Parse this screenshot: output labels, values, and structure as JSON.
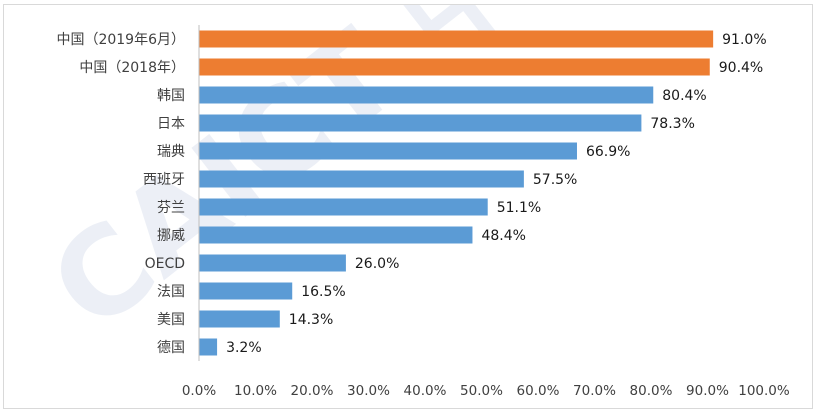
{
  "chart_data": {
    "type": "bar",
    "orientation": "horizontal",
    "categories": [
      "中国（2019年6月）",
      "中国（2018年）",
      "韩国",
      "日本",
      "瑞典",
      "西班牙",
      "芬兰",
      "挪威",
      "OECD",
      "法国",
      "美国",
      "德国"
    ],
    "values": [
      91.0,
      90.4,
      80.4,
      78.3,
      66.9,
      57.5,
      51.1,
      48.4,
      26.0,
      16.5,
      14.3,
      3.2
    ],
    "value_labels": [
      "91.0%",
      "90.4%",
      "80.4%",
      "78.3%",
      "66.9%",
      "57.5%",
      "51.1%",
      "48.4%",
      "26.0%",
      "16.5%",
      "14.3%",
      "3.2%"
    ],
    "xlim": [
      0,
      100
    ],
    "x_ticks": [
      "0.0%",
      "10.0%",
      "20.0%",
      "30.0%",
      "40.0%",
      "50.0%",
      "60.0%",
      "70.0%",
      "80.0%",
      "90.0%",
      "100.0%"
    ],
    "grid": false,
    "legend": "none",
    "colors": {
      "highlight": "#ed7d31",
      "default": "#5b9bd5"
    },
    "highlighted_categories": [
      0,
      1
    ],
    "watermark": "CAICT 中国信通院"
  }
}
